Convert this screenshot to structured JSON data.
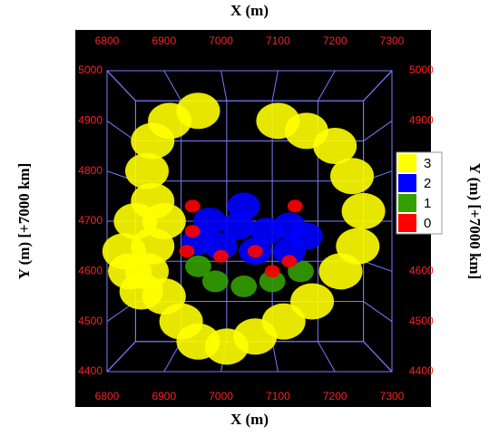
{
  "chart_data": {
    "type": "scatter",
    "x_label": "X (m)",
    "y_label": "Y (m) [+7000 km]",
    "xlim": [
      6800,
      7300
    ],
    "ylim": [
      4400,
      5000
    ],
    "xticks": [
      6800,
      6900,
      7000,
      7100,
      7200,
      7300
    ],
    "yticks": [
      4400,
      4500,
      4600,
      4700,
      4800,
      4900,
      5000
    ],
    "grid": true,
    "legend": "right",
    "series": [
      {
        "name": "3",
        "color": "#ffff00",
        "x": [
          6880,
          6870,
          6900,
          6930,
          6960,
          7010,
          7060,
          7110,
          7160,
          7210,
          7240,
          7250,
          7230,
          7200,
          7150,
          7100,
          6960,
          6910,
          6880,
          6870,
          6880,
          6900,
          6850,
          6860,
          6830,
          6840
        ],
        "values": [
          4650,
          4600,
          4550,
          4500,
          4460,
          4450,
          4470,
          4500,
          4540,
          4600,
          4650,
          4720,
          4790,
          4850,
          4880,
          4900,
          4920,
          4900,
          4860,
          4800,
          4740,
          4700,
          4700,
          4560,
          4640,
          4600
        ]
      },
      {
        "name": "2",
        "color": "#0000ff",
        "x": [
          6980,
          7030,
          7080,
          7120,
          7000,
          7060,
          7120,
          6960,
          7040,
          7150
        ],
        "values": [
          4700,
          4690,
          4680,
          4690,
          4650,
          4640,
          4640,
          4660,
          4730,
          4670
        ]
      },
      {
        "name": "1",
        "color": "#33a000",
        "x": [
          6990,
          7040,
          7090,
          7140,
          6960
        ],
        "values": [
          4580,
          4570,
          4580,
          4600,
          4610
        ]
      },
      {
        "name": "0",
        "color": "#ff0000",
        "x": [
          6950,
          6940,
          7000,
          7060,
          7120,
          7130,
          6950,
          7090
        ],
        "values": [
          4680,
          4640,
          4630,
          4640,
          4620,
          4730,
          4730,
          4600
        ]
      }
    ]
  }
}
